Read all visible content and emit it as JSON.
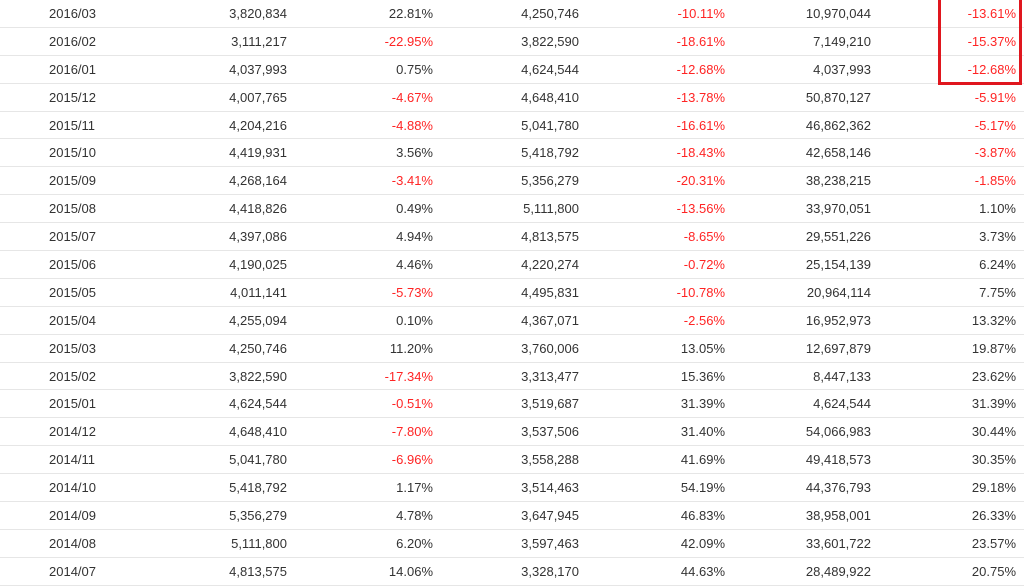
{
  "highlight_color": "#e0161e",
  "negative_color": "#ff2424",
  "rows": [
    [
      "2016/03",
      "3,820,834",
      "22.81%",
      "4,250,746",
      "-10.11%",
      "10,970,044",
      "-13.61%"
    ],
    [
      "2016/02",
      "3,111,217",
      "-22.95%",
      "3,822,590",
      "-18.61%",
      "7,149,210",
      "-15.37%"
    ],
    [
      "2016/01",
      "4,037,993",
      "0.75%",
      "4,624,544",
      "-12.68%",
      "4,037,993",
      "-12.68%"
    ],
    [
      "2015/12",
      "4,007,765",
      "-4.67%",
      "4,648,410",
      "-13.78%",
      "50,870,127",
      "-5.91%"
    ],
    [
      "2015/11",
      "4,204,216",
      "-4.88%",
      "5,041,780",
      "-16.61%",
      "46,862,362",
      "-5.17%"
    ],
    [
      "2015/10",
      "4,419,931",
      "3.56%",
      "5,418,792",
      "-18.43%",
      "42,658,146",
      "-3.87%"
    ],
    [
      "2015/09",
      "4,268,164",
      "-3.41%",
      "5,356,279",
      "-20.31%",
      "38,238,215",
      "-1.85%"
    ],
    [
      "2015/08",
      "4,418,826",
      "0.49%",
      "5,111,800",
      "-13.56%",
      "33,970,051",
      "1.10%"
    ],
    [
      "2015/07",
      "4,397,086",
      "4.94%",
      "4,813,575",
      "-8.65%",
      "29,551,226",
      "3.73%"
    ],
    [
      "2015/06",
      "4,190,025",
      "4.46%",
      "4,220,274",
      "-0.72%",
      "25,154,139",
      "6.24%"
    ],
    [
      "2015/05",
      "4,011,141",
      "-5.73%",
      "4,495,831",
      "-10.78%",
      "20,964,114",
      "7.75%"
    ],
    [
      "2015/04",
      "4,255,094",
      "0.10%",
      "4,367,071",
      "-2.56%",
      "16,952,973",
      "13.32%"
    ],
    [
      "2015/03",
      "4,250,746",
      "11.20%",
      "3,760,006",
      "13.05%",
      "12,697,879",
      "19.87%"
    ],
    [
      "2015/02",
      "3,822,590",
      "-17.34%",
      "3,313,477",
      "15.36%",
      "8,447,133",
      "23.62%"
    ],
    [
      "2015/01",
      "4,624,544",
      "-0.51%",
      "3,519,687",
      "31.39%",
      "4,624,544",
      "31.39%"
    ],
    [
      "2014/12",
      "4,648,410",
      "-7.80%",
      "3,537,506",
      "31.40%",
      "54,066,983",
      "30.44%"
    ],
    [
      "2014/11",
      "5,041,780",
      "-6.96%",
      "3,558,288",
      "41.69%",
      "49,418,573",
      "30.35%"
    ],
    [
      "2014/10",
      "5,418,792",
      "1.17%",
      "3,514,463",
      "54.19%",
      "44,376,793",
      "29.18%"
    ],
    [
      "2014/09",
      "5,356,279",
      "4.78%",
      "3,647,945",
      "46.83%",
      "38,958,001",
      "26.33%"
    ],
    [
      "2014/08",
      "5,111,800",
      "6.20%",
      "3,597,463",
      "42.09%",
      "33,601,722",
      "23.57%"
    ],
    [
      "2014/07",
      "4,813,575",
      "14.06%",
      "3,328,170",
      "44.63%",
      "28,489,922",
      "20.75%"
    ]
  ]
}
